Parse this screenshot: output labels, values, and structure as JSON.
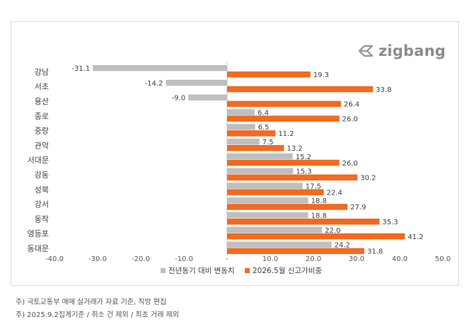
{
  "brand": {
    "name": "zigbang",
    "icon": "zigbang-logo-icon"
  },
  "colors": {
    "series1": "#bfbfbf",
    "series2": "#f26a1f",
    "axis": "#d9d9d9",
    "text": "#404040",
    "tick": "#595959"
  },
  "chart_data": {
    "type": "bar",
    "orientation": "horizontal",
    "categories": [
      "강남",
      "서초",
      "용산",
      "종로",
      "중랑",
      "관악",
      "서대문",
      "강동",
      "성북",
      "강서",
      "동작",
      "영등포",
      "동대문"
    ],
    "series": [
      {
        "name": "전년동기 대비 변동치",
        "values": [
          -31.1,
          -14.2,
          -9.0,
          6.4,
          6.5,
          7.5,
          15.2,
          15.3,
          17.5,
          18.8,
          18.8,
          22.0,
          24.2
        ]
      },
      {
        "name": "2026.5월 신고가비중",
        "values": [
          19.3,
          33.8,
          26.4,
          26.0,
          11.2,
          13.2,
          26.0,
          30.2,
          22.4,
          27.9,
          35.3,
          41.2,
          31.8
        ]
      }
    ],
    "data_labels": [
      [
        "-31.1",
        "-14.2",
        "-9.0",
        "6.4",
        "6.5",
        "7.5",
        "15.2",
        "15.3",
        "17.5",
        "18.8",
        "18.8",
        "22.0",
        "24.2"
      ],
      [
        "19.3",
        "33.8",
        "26.4",
        "26.0",
        "11.2",
        "13.2",
        "26.0",
        "30.2",
        "22.4",
        "27.9",
        "35.3",
        "41.2",
        "31.8"
      ]
    ],
    "xlim": [
      -40,
      50
    ],
    "xticks": [
      -40,
      -30,
      -20,
      -10,
      0,
      10,
      20,
      30,
      40,
      50
    ],
    "xtick_labels": [
      "-40.0",
      "-30.0",
      "-20.0",
      "-10.0",
      "-",
      "10.0",
      "20.0",
      "30.0",
      "40.0",
      "50.0"
    ],
    "grid": false,
    "legend_position": "bottom"
  },
  "footnotes": [
    "주) 국토교통부 매매 실거래가 자료 기준, 직방 편집",
    "주) 2025.9.2집계기준 / 취소 건 제외  / 최초 거래 제외"
  ]
}
